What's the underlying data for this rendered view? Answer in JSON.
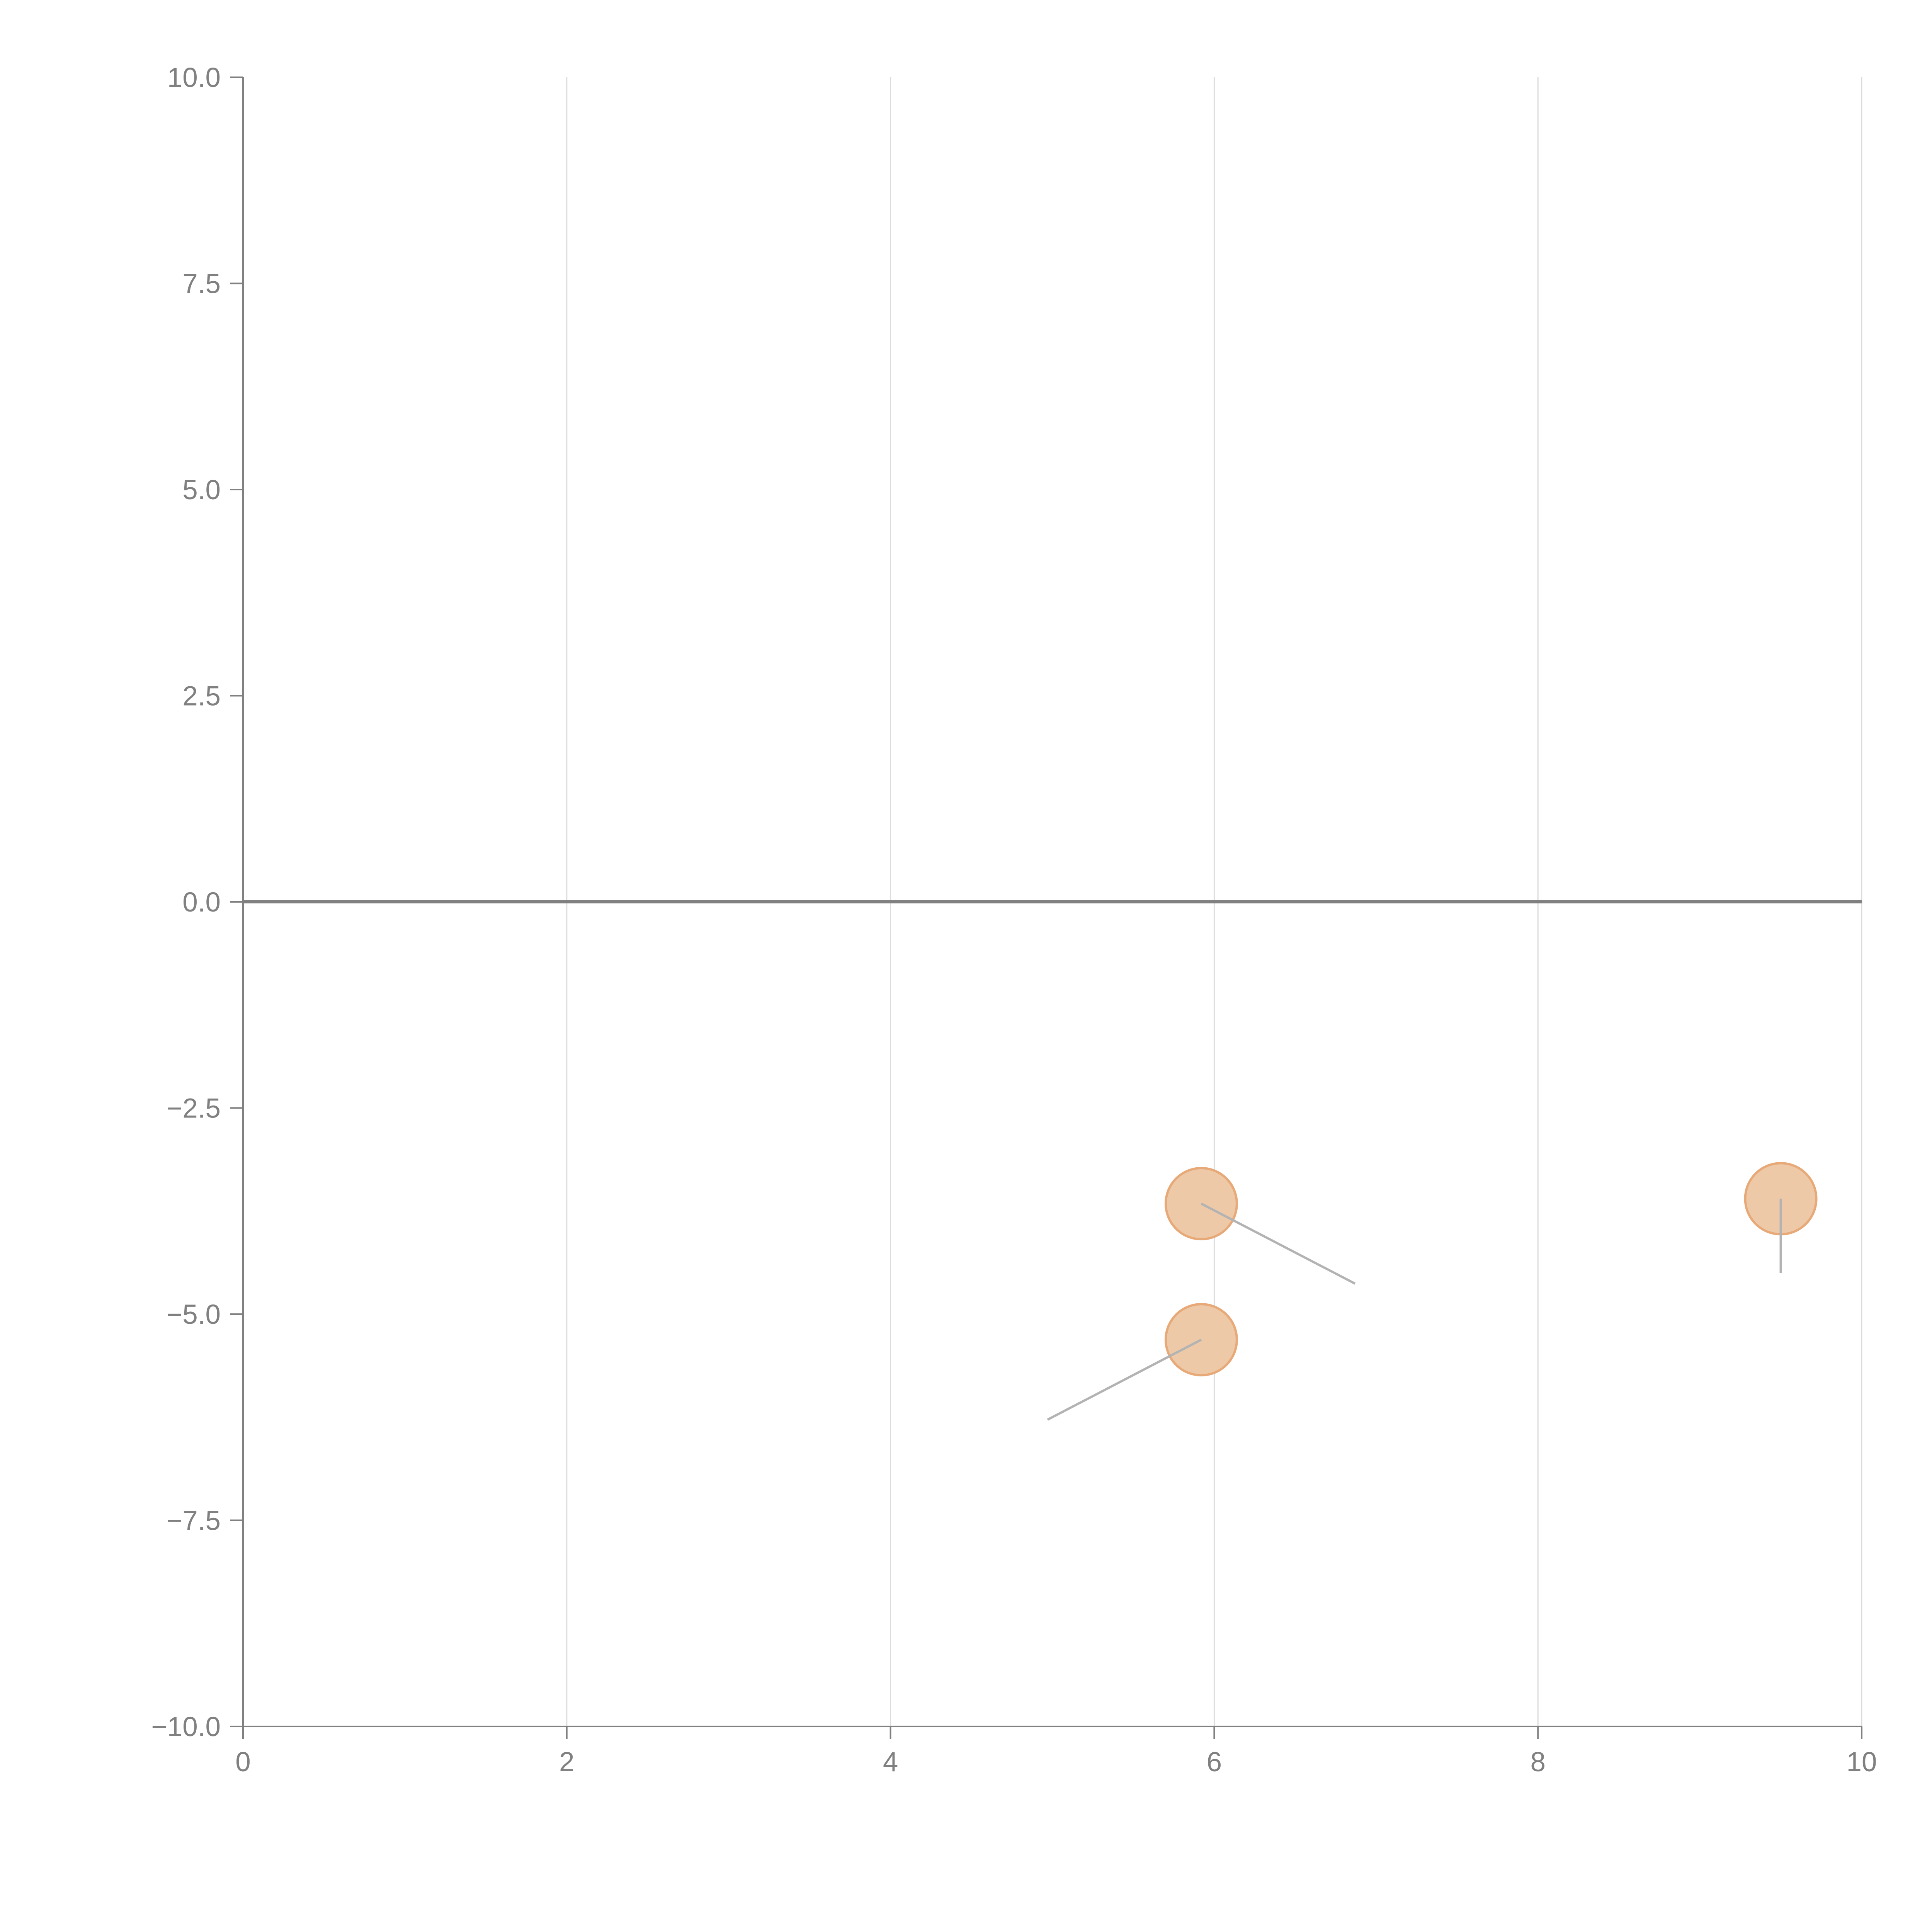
{
  "chart_data": {
    "type": "scatter",
    "title": "",
    "xlabel": "",
    "ylabel": "",
    "xlim": [
      0,
      10
    ],
    "ylim": [
      -10,
      10
    ],
    "grid": {
      "x": true,
      "y": false
    },
    "baseline_y": 0,
    "x_ticks": [
      0,
      2,
      4,
      6,
      8,
      10
    ],
    "y_ticks": [
      10.0,
      7.5,
      5.0,
      2.5,
      0.0,
      -2.5,
      -5.0,
      -7.5,
      -10.0
    ],
    "x_tick_labels": [
      "0",
      "2",
      "4",
      "6",
      "8",
      "10"
    ],
    "y_tick_labels": [
      "10.0",
      "7.5",
      "5.0",
      "2.5",
      "0.0",
      "−2.5",
      "−5.0",
      "−7.5",
      "−10.0"
    ],
    "points": [
      {
        "x": 5.92,
        "y": -3.66,
        "vx": 0.95,
        "vy": -0.97
      },
      {
        "x": 5.92,
        "y": -5.31,
        "vx": -0.95,
        "vy": -0.97
      },
      {
        "x": 9.5,
        "y": -3.6,
        "vx": 0.0,
        "vy": -0.9
      }
    ],
    "colors": {
      "point_fill": "#eec9a8",
      "point_stroke": "#e8a978",
      "vector": "#b3b3b3",
      "axis": "#808080",
      "baseline": "#808080",
      "grid": "#dcdcdc",
      "text": "#808080"
    }
  }
}
